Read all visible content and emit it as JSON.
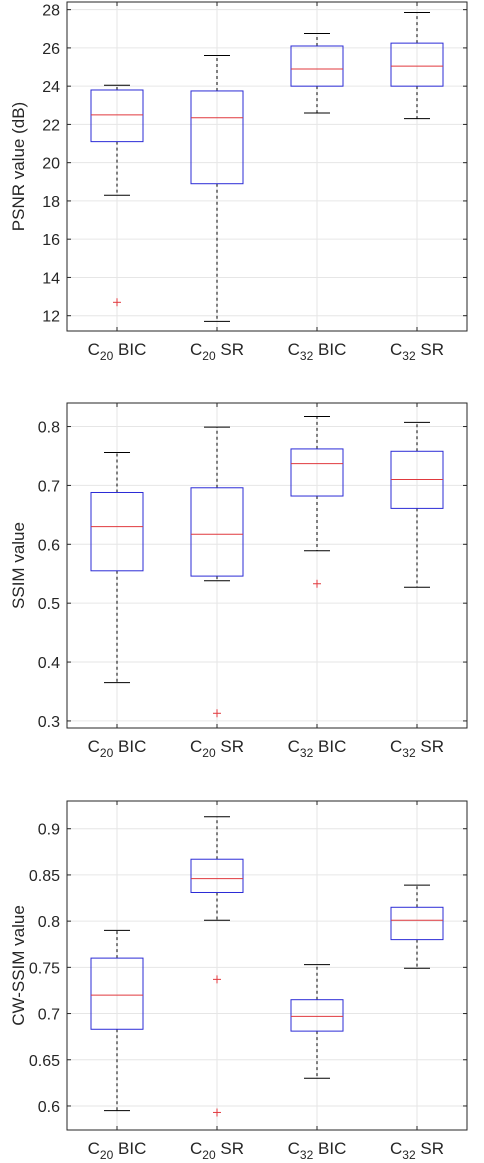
{
  "colors": {
    "box": "#2b2bd6",
    "median": "#e0393e",
    "outlier": "#e0393e",
    "whisker": "#000000",
    "axis": "#262626",
    "grid": "#e6e6e6"
  },
  "chart_data": [
    {
      "type": "boxplot",
      "ylabel": "PSNR value (dB)",
      "xlabel": "",
      "title": "",
      "grid": true,
      "ylim": [
        11.2,
        28.4
      ],
      "yticks": [
        12,
        14,
        16,
        18,
        20,
        22,
        24,
        26,
        28
      ],
      "categories": [
        {
          "base": "C",
          "sub": "20",
          "suffix": " BIC"
        },
        {
          "base": "C",
          "sub": "20",
          "suffix": " SR"
        },
        {
          "base": "C",
          "sub": "32",
          "suffix": " BIC"
        },
        {
          "base": "C",
          "sub": "32",
          "suffix": " SR"
        }
      ],
      "boxes": [
        {
          "whisker_low": 18.3,
          "q1": 21.1,
          "median": 22.5,
          "q3": 23.8,
          "whisker_high": 24.05,
          "outliers": [
            12.7
          ]
        },
        {
          "whisker_low": 11.7,
          "q1": 18.9,
          "median": 22.35,
          "q3": 23.75,
          "whisker_high": 25.6,
          "outliers": []
        },
        {
          "whisker_low": 22.6,
          "q1": 24.0,
          "median": 24.9,
          "q3": 26.1,
          "whisker_high": 26.75,
          "outliers": []
        },
        {
          "whisker_low": 22.3,
          "q1": 24.0,
          "median": 25.05,
          "q3": 26.25,
          "whisker_high": 27.85,
          "outliers": []
        }
      ]
    },
    {
      "type": "boxplot",
      "ylabel": "SSIM value",
      "xlabel": "",
      "title": "",
      "grid": true,
      "ylim": [
        0.288,
        0.84
      ],
      "yticks": [
        0.3,
        0.4,
        0.5,
        0.6,
        0.7,
        0.8
      ],
      "categories": [
        {
          "base": "C",
          "sub": "20",
          "suffix": " BIC"
        },
        {
          "base": "C",
          "sub": "20",
          "suffix": " SR"
        },
        {
          "base": "C",
          "sub": "32",
          "suffix": " BIC"
        },
        {
          "base": "C",
          "sub": "32",
          "suffix": " SR"
        }
      ],
      "boxes": [
        {
          "whisker_low": 0.365,
          "q1": 0.555,
          "median": 0.63,
          "q3": 0.688,
          "whisker_high": 0.756,
          "outliers": []
        },
        {
          "whisker_low": 0.538,
          "q1": 0.546,
          "median": 0.617,
          "q3": 0.696,
          "whisker_high": 0.799,
          "outliers": [
            0.313
          ]
        },
        {
          "whisker_low": 0.589,
          "q1": 0.682,
          "median": 0.737,
          "q3": 0.762,
          "whisker_high": 0.817,
          "outliers": [
            0.533
          ]
        },
        {
          "whisker_low": 0.527,
          "q1": 0.661,
          "median": 0.71,
          "q3": 0.758,
          "whisker_high": 0.807,
          "outliers": []
        }
      ]
    },
    {
      "type": "boxplot",
      "ylabel": "CW-SSIM value",
      "xlabel": "",
      "title": "",
      "grid": true,
      "ylim": [
        0.574,
        0.93
      ],
      "yticks": [
        0.6,
        0.65,
        0.7,
        0.75,
        0.8,
        0.85,
        0.9
      ],
      "categories": [
        {
          "base": "C",
          "sub": "20",
          "suffix": " BIC"
        },
        {
          "base": "C",
          "sub": "20",
          "suffix": " SR"
        },
        {
          "base": "C",
          "sub": "32",
          "suffix": " BIC"
        },
        {
          "base": "C",
          "sub": "32",
          "suffix": " SR"
        }
      ],
      "boxes": [
        {
          "whisker_low": 0.595,
          "q1": 0.683,
          "median": 0.72,
          "q3": 0.76,
          "whisker_high": 0.79,
          "outliers": []
        },
        {
          "whisker_low": 0.801,
          "q1": 0.831,
          "median": 0.846,
          "q3": 0.867,
          "whisker_high": 0.913,
          "outliers": [
            0.737,
            0.593
          ]
        },
        {
          "whisker_low": 0.63,
          "q1": 0.681,
          "median": 0.697,
          "q3": 0.715,
          "whisker_high": 0.753,
          "outliers": []
        },
        {
          "whisker_low": 0.749,
          "q1": 0.78,
          "median": 0.801,
          "q3": 0.815,
          "whisker_high": 0.839,
          "outliers": []
        }
      ]
    }
  ]
}
